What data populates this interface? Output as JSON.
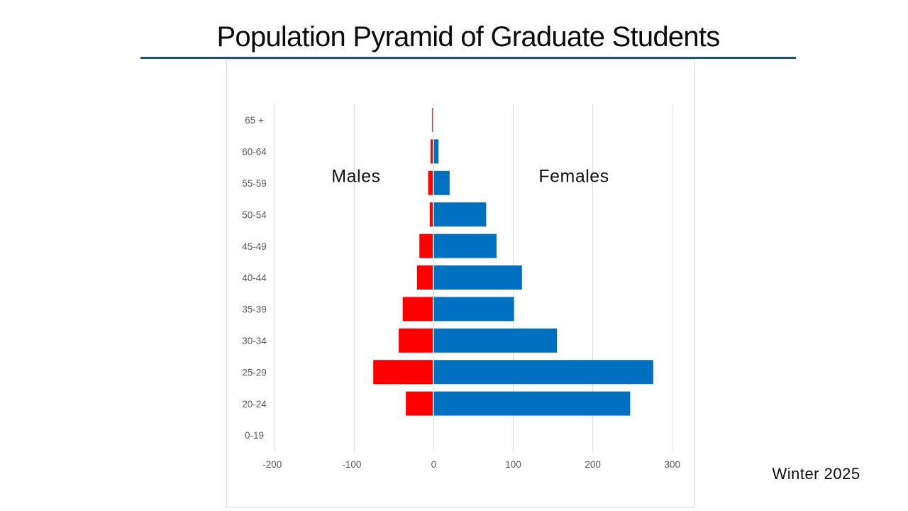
{
  "slide": {
    "title": "Population Pyramid of Graduate Students",
    "footer": "Winter 2025"
  },
  "annotations": {
    "left_series_label": "Males",
    "right_series_label": "Females"
  },
  "colors": {
    "title_underline": "#1E5668",
    "males_bar": "#FF0000",
    "females_bar": "#0070C0",
    "gridline": "#D9D9D9",
    "axis_label": "#595959",
    "chart_border": "#D9D9D9"
  },
  "chart_data": {
    "type": "bar",
    "orientation": "horizontal-diverging",
    "title": "",
    "xlabel": "",
    "ylabel": "",
    "categories_top_to_bottom": [
      "65 +",
      "60-64",
      "55-59",
      "50-54",
      "45-49",
      "40-44",
      "35-39",
      "30-34",
      "25-29",
      "20-24",
      "0-19"
    ],
    "series": [
      {
        "name": "Males",
        "color": "#FF0000",
        "values": [
          -2,
          -4,
          -7,
          -5,
          -18,
          -21,
          -39,
          -44,
          -76,
          -35,
          0
        ]
      },
      {
        "name": "Females",
        "color": "#0070C0",
        "values": [
          0,
          6,
          20,
          66,
          79,
          111,
          101,
          155,
          276,
          247,
          0
        ]
      }
    ],
    "x_ticks": [
      -200,
      -100,
      0,
      100,
      200,
      300
    ],
    "xlim": [
      -200,
      300
    ],
    "grid": true,
    "legend": "none"
  }
}
